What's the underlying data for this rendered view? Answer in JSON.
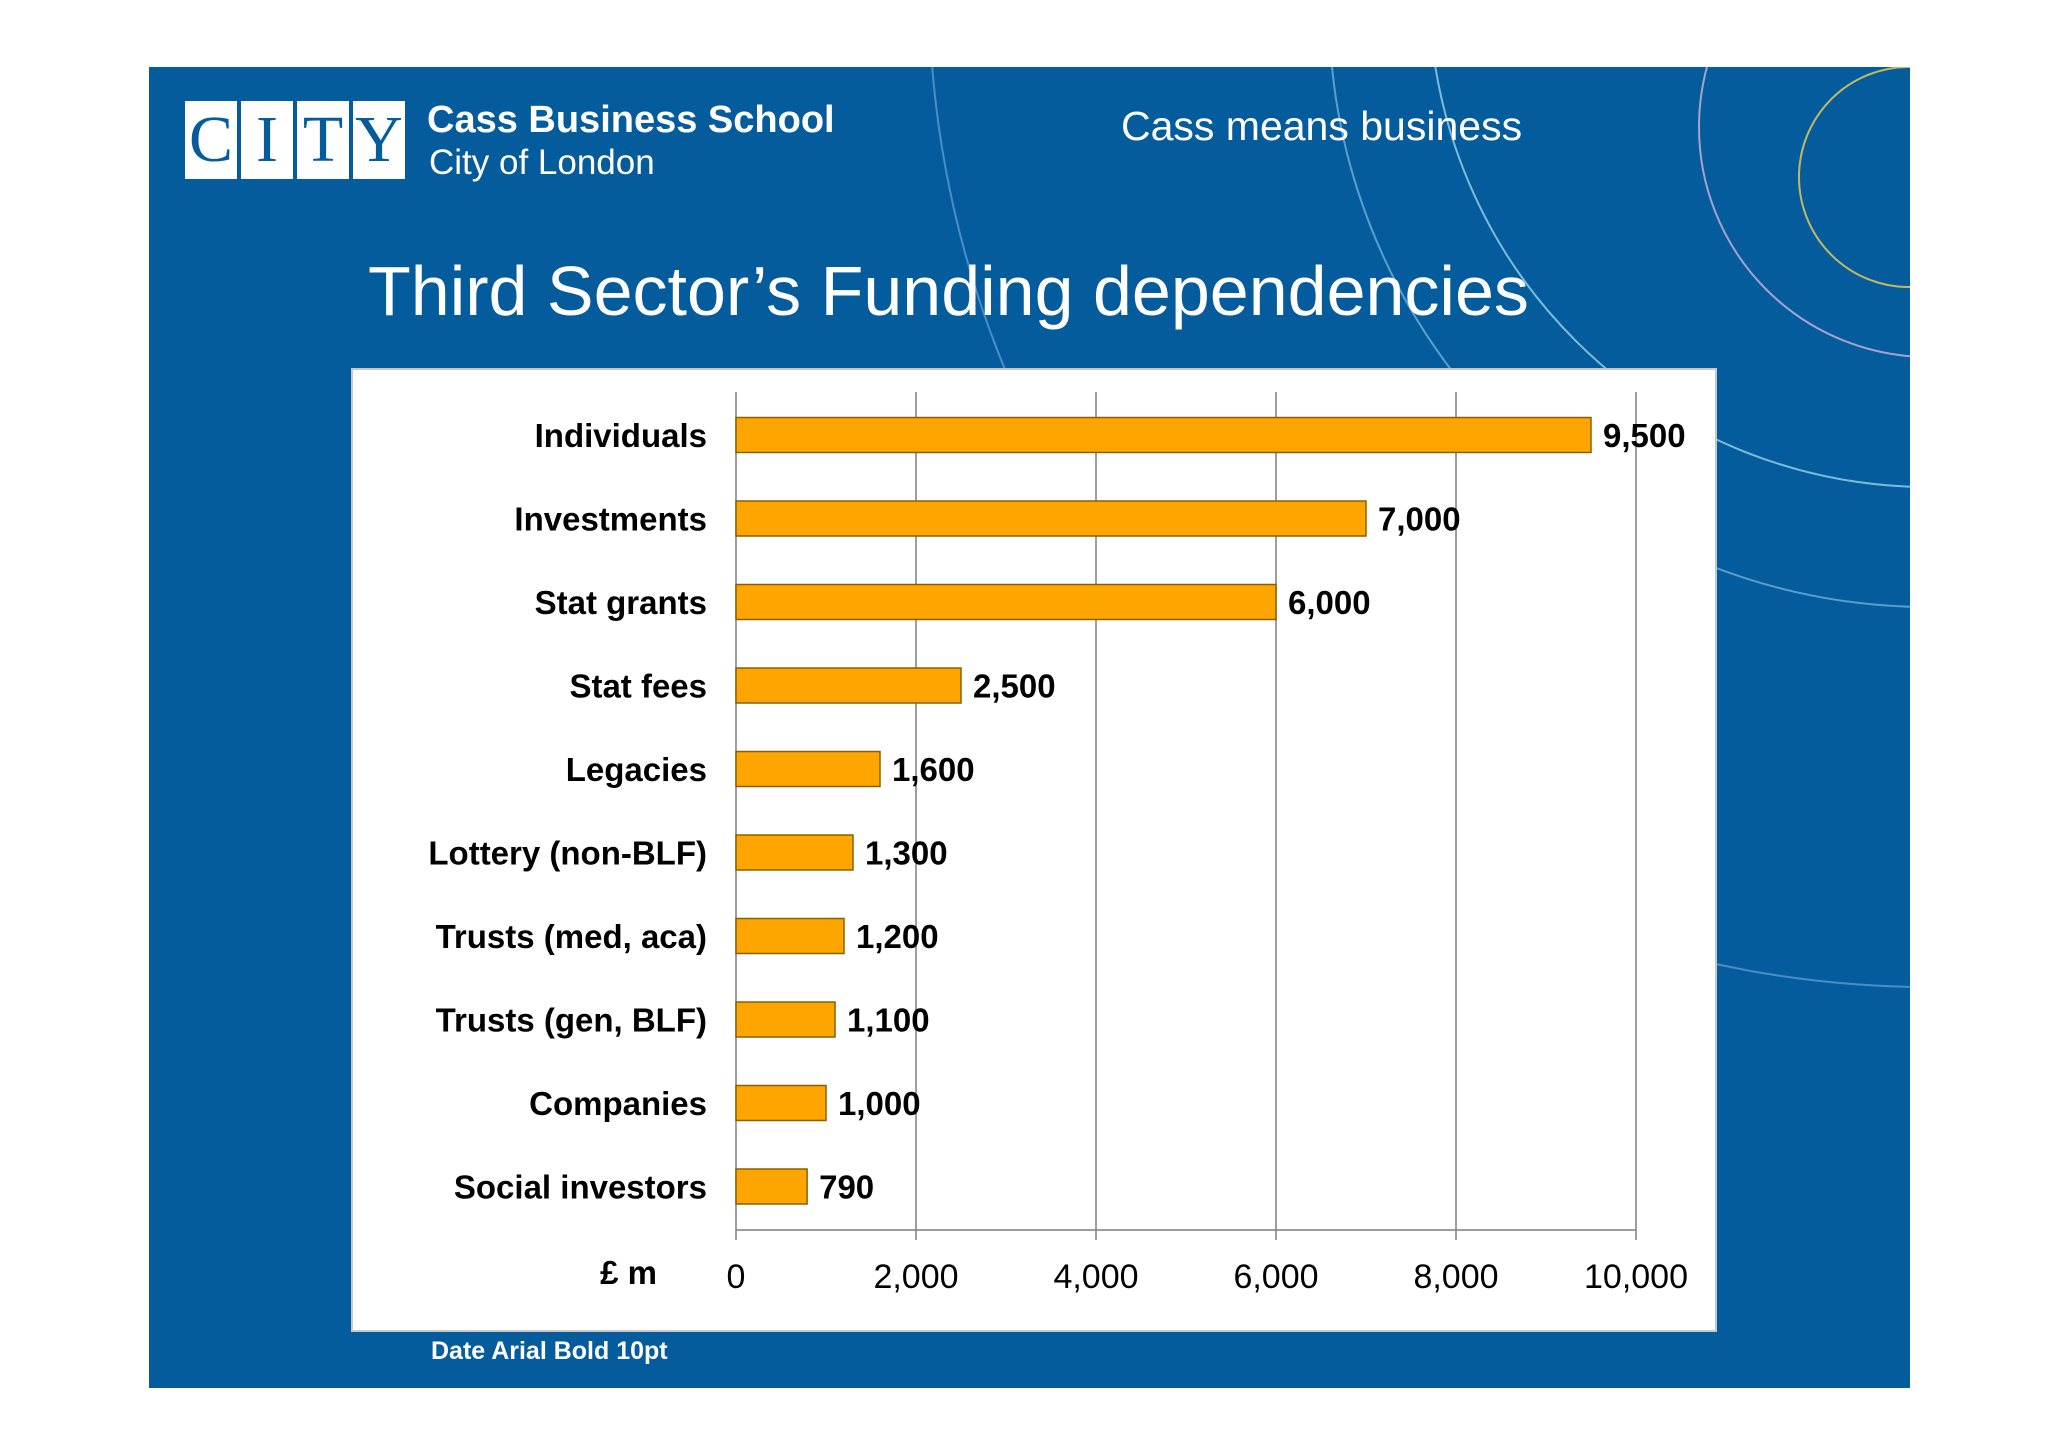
{
  "header": {
    "logo_letters": [
      "C",
      "I",
      "T",
      "Y"
    ],
    "school_name": "Cass Business School",
    "school_sub": "City of London",
    "tagline": "Cass means business"
  },
  "slide_title": "Third Sector’s Funding dependencies",
  "footer_note": "Date Arial Bold 10pt",
  "colors": {
    "background": "#055c9d",
    "bar_fill": "#ffa500",
    "bar_stroke": "#8a6000",
    "gridline": "#7f7f7f"
  },
  "chart_data": {
    "type": "bar",
    "orientation": "horizontal",
    "categories": [
      "Individuals",
      "Investments",
      "Stat grants",
      "Stat fees",
      "Legacies",
      "Lottery (non-BLF)",
      "Trusts (med, aca)",
      "Trusts (gen, BLF)",
      "Companies",
      "Social investors"
    ],
    "values": [
      9500,
      7000,
      6000,
      2500,
      1600,
      1300,
      1200,
      1100,
      1000,
      790
    ],
    "data_labels": [
      "9,500",
      "7,000",
      "6,000",
      "2,500",
      "1,600",
      "1,300",
      "1,200",
      "1,100",
      "1,000",
      "790"
    ],
    "xlabel": "£ m",
    "xlim": [
      0,
      10000
    ],
    "xticks": [
      0,
      2000,
      4000,
      6000,
      8000,
      10000
    ],
    "xtick_labels": [
      "0",
      "2,000",
      "4,000",
      "6,000",
      "8,000",
      "10,000"
    ],
    "grid": true,
    "legend": "none"
  }
}
